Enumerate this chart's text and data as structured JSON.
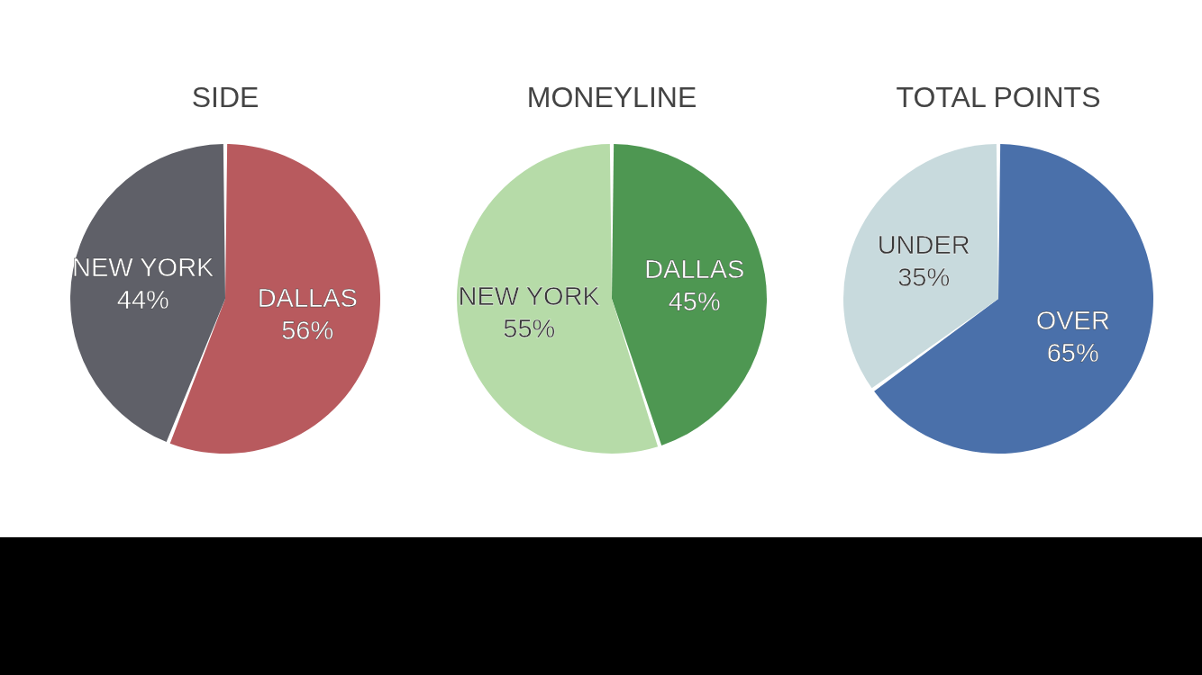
{
  "chart_data": [
    {
      "type": "pie",
      "title": "SIDE",
      "categories": [
        "DALLAS",
        "NEW YORK"
      ],
      "values": [
        56,
        44
      ],
      "value_labels": [
        "56%",
        "44%"
      ],
      "colors": [
        "#b85a5e",
        "#5f6068"
      ]
    },
    {
      "type": "pie",
      "title": "MONEYLINE",
      "categories": [
        "DALLAS",
        "NEW YORK"
      ],
      "values": [
        45,
        55
      ],
      "value_labels": [
        "45%",
        "55%"
      ],
      "colors": [
        "#4e9752",
        "#b6dba8"
      ]
    },
    {
      "type": "pie",
      "title": "TOTAL POINTS",
      "categories": [
        "OVER",
        "UNDER"
      ],
      "values": [
        65,
        35
      ],
      "value_labels": [
        "65%",
        "35%"
      ],
      "colors": [
        "#4a70aa",
        "#c8dadd"
      ]
    }
  ]
}
